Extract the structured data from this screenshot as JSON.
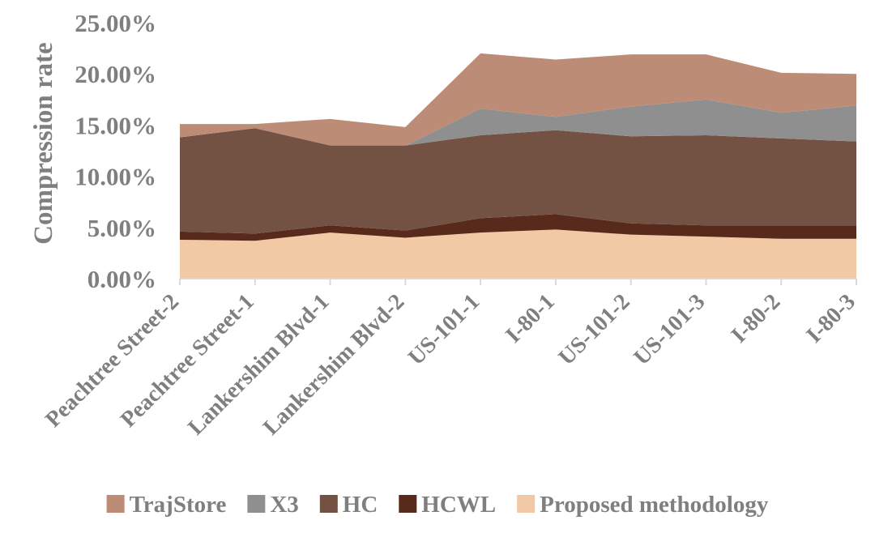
{
  "chart_data": {
    "type": "area",
    "stacked": true,
    "title": "",
    "xlabel": "",
    "ylabel": "Compression rate",
    "ylim": [
      0,
      25
    ],
    "yticks": [
      "0.00%",
      "5.00%",
      "10.00%",
      "15.00%",
      "20.00%",
      "25.00%"
    ],
    "grid": false,
    "legend_position": "bottom",
    "categories": [
      "Peachtree Street-2",
      "Peachtree Street-1",
      "Lankershim Blvd-1",
      "Lankershim Blvd-2",
      "US-101-1",
      "I-80-1",
      "US-101-2",
      "US-101-3",
      "I-80-2",
      "I-80-3"
    ],
    "series": [
      {
        "name": "Proposed methodology",
        "color": "#f1c9a5",
        "values": [
          3.8,
          3.7,
          4.5,
          4.0,
          4.5,
          4.8,
          4.3,
          4.1,
          3.9,
          3.9
        ]
      },
      {
        "name": "HCWL",
        "color": "#582a1c",
        "values": [
          0.8,
          0.7,
          0.7,
          0.7,
          1.4,
          1.5,
          1.1,
          1.1,
          1.3,
          1.3
        ]
      },
      {
        "name": "HC",
        "color": "#735244",
        "values": [
          9.2,
          10.3,
          7.8,
          8.3,
          8.1,
          8.2,
          8.5,
          8.8,
          8.5,
          8.2
        ]
      },
      {
        "name": "X3",
        "color": "#8f8f8f",
        "values": [
          0.0,
          0.0,
          0.0,
          0.0,
          2.6,
          1.3,
          2.9,
          3.5,
          2.5,
          3.5
        ]
      },
      {
        "name": "TrajStore",
        "color": "#bd8c77",
        "values": [
          1.3,
          0.4,
          2.6,
          1.8,
          5.4,
          5.6,
          5.1,
          4.4,
          3.9,
          3.1
        ]
      }
    ],
    "legend_order": [
      "TrajStore",
      "X3",
      "HC",
      "HCWL",
      "Proposed methodology"
    ]
  }
}
